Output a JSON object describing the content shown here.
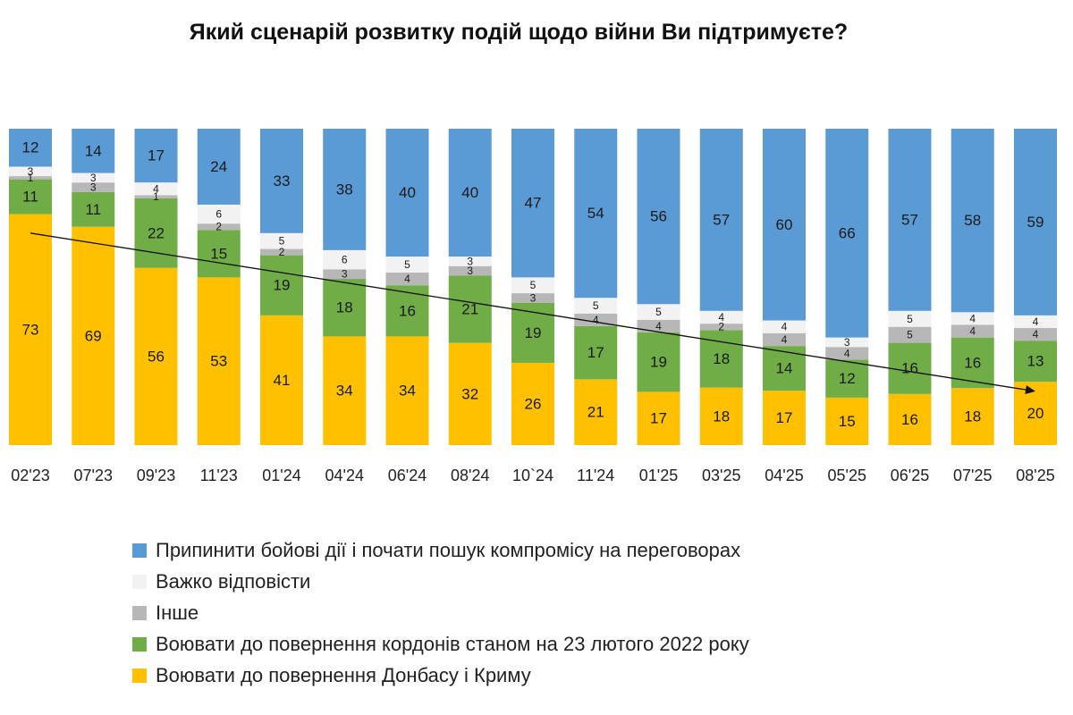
{
  "chart_data": {
    "type": "bar",
    "stacked": true,
    "title": "Який сценарій розвитку подій щодо війни Ви підтримуєте?",
    "categories": [
      "02'23",
      "07'23",
      "09'23",
      "11'23",
      "01'24",
      "04'24",
      "06'24",
      "08'24",
      "10`24",
      "11'24",
      "01'25",
      "03'25",
      "04'25",
      "05'25",
      "06'25",
      "07'25",
      "08'25"
    ],
    "series": [
      {
        "key": "donbas",
        "name": "Воювати до повернення Донбасу і Криму",
        "color": "#FFC000",
        "values": [
          73,
          69,
          56,
          53,
          41,
          34,
          34,
          32,
          26,
          21,
          17,
          18,
          17,
          15,
          16,
          18,
          20
        ]
      },
      {
        "key": "borders",
        "name": "Воювати до повернення кордонів станом на 23 лютого 2022 року",
        "color": "#70AD47",
        "values": [
          11,
          11,
          22,
          15,
          19,
          18,
          16,
          21,
          19,
          17,
          19,
          18,
          14,
          12,
          16,
          16,
          13
        ]
      },
      {
        "key": "other",
        "name": "Інше",
        "color": "#B7B7B7",
        "values": [
          1,
          3,
          1,
          2,
          2,
          3,
          4,
          3,
          3,
          4,
          4,
          2,
          4,
          4,
          5,
          4,
          4
        ]
      },
      {
        "key": "hard",
        "name": "Важко відповісти",
        "color": "#F2F2F2",
        "values": [
          3,
          3,
          4,
          6,
          5,
          6,
          5,
          3,
          5,
          5,
          5,
          4,
          4,
          3,
          5,
          4,
          4
        ]
      },
      {
        "key": "stop",
        "name": "Припинити бойові дії і почати пошук компромісу на переговорах",
        "color": "#5B9BD5",
        "values": [
          12,
          14,
          17,
          24,
          33,
          38,
          40,
          40,
          47,
          54,
          56,
          57,
          60,
          66,
          57,
          58,
          59
        ]
      }
    ],
    "legend_order": [
      "stop",
      "hard",
      "other",
      "borders",
      "donbas"
    ],
    "trend_line": {
      "from_category": "02'23",
      "to_category": "08'25",
      "from_value": 67,
      "to_value": 17,
      "arrow": true
    },
    "ylim": [
      0,
      100
    ],
    "xlabel": "",
    "ylabel": "",
    "grid": false,
    "legend_position": "bottom"
  }
}
